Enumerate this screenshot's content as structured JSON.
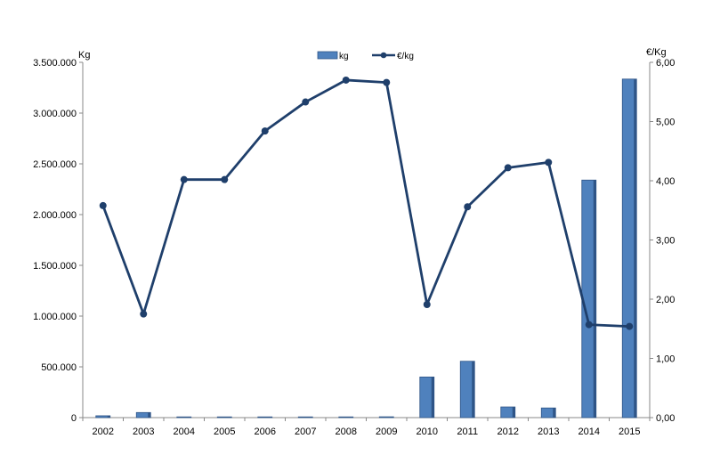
{
  "chart_data": {
    "type": "bar",
    "categories": [
      "2002",
      "2003",
      "2004",
      "2005",
      "2006",
      "2007",
      "2008",
      "2009",
      "2010",
      "2011",
      "2012",
      "2013",
      "2014",
      "2015"
    ],
    "series": [
      {
        "name": "kg",
        "type": "bar",
        "axis": "left",
        "values": [
          18000,
          50000,
          2000,
          2000,
          5000,
          2000,
          3000,
          8000,
          400000,
          555000,
          105000,
          95000,
          2340000,
          3335000
        ]
      },
      {
        "name": "€/kg",
        "type": "line",
        "axis": "right",
        "values": [
          3.58,
          1.75,
          4.02,
          4.02,
          4.84,
          5.33,
          5.7,
          5.66,
          1.91,
          3.56,
          4.22,
          4.31,
          1.57,
          1.54
        ]
      }
    ],
    "left_axis": {
      "label": "Kg",
      "range": [
        0,
        3500000
      ],
      "ticks": [
        "0",
        "500.000",
        "1.000.000",
        "1.500.000",
        "2.000.000",
        "2.500.000",
        "3.000.000",
        "3.500.000"
      ]
    },
    "right_axis": {
      "label": "€/Kg",
      "range": [
        0,
        6
      ],
      "ticks": [
        "0,00",
        "1,00",
        "2,00",
        "3,00",
        "4,00",
        "5,00",
        "6,00"
      ]
    },
    "legend": {
      "placement": "top-center",
      "entries": [
        "kg",
        "€/kg"
      ]
    },
    "grid": false,
    "colors": {
      "bar": "#4f81bd",
      "bar_dark": "#2f5587",
      "line": "#1f3f6b",
      "axis": "#888888"
    }
  }
}
